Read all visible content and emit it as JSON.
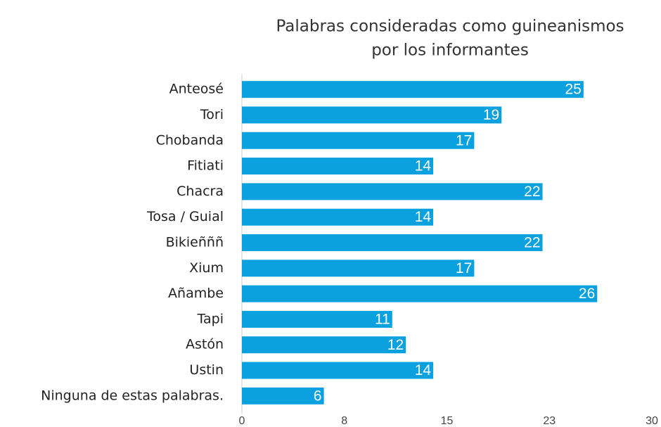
{
  "chart_data": {
    "type": "bar",
    "orientation": "horizontal",
    "title": [
      "Palabras consideradas como guineanismos",
      "por los informantes"
    ],
    "categories": [
      "Anteosé",
      "Tori",
      "Chobanda",
      "Fitiati",
      "Chacra",
      "Tosa / Guial",
      "Bikieñññ",
      "Xium",
      "Añambe",
      "Tapi",
      "Astón",
      "Ustin",
      "Ninguna de estas palabras."
    ],
    "values": [
      25,
      19,
      17,
      14,
      22,
      14,
      22,
      17,
      26,
      11,
      12,
      14,
      6
    ],
    "color": "#0aa1de",
    "xlim": [
      0,
      30
    ],
    "xticks": [
      0,
      {
        "value": 7.5,
        "label": "8"
      },
      15,
      {
        "value": 22.5,
        "label": "23"
      },
      30
    ]
  }
}
